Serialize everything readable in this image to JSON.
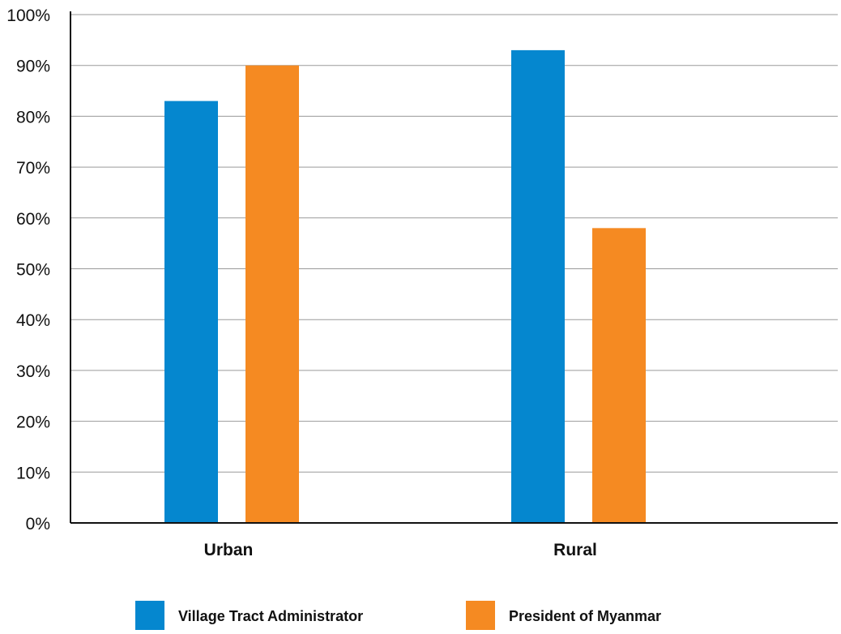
{
  "chart_data": {
    "type": "bar",
    "categories": [
      "Urban",
      "Rural"
    ],
    "series": [
      {
        "name": "Village Tract Administrator",
        "color": "#0587cf",
        "values": [
          83,
          93
        ]
      },
      {
        "name": "President of Myanmar",
        "color": "#f58a22",
        "values": [
          90,
          58
        ]
      }
    ],
    "ylim": [
      0,
      100
    ],
    "yticks": [
      0,
      10,
      20,
      30,
      40,
      50,
      60,
      70,
      80,
      90,
      100
    ],
    "ytick_labels": [
      "0%",
      "10%",
      "20%",
      "30%",
      "40%",
      "50%",
      "60%",
      "70%",
      "80%",
      "90%",
      "100%"
    ],
    "grid": true,
    "legend_position": "bottom"
  }
}
